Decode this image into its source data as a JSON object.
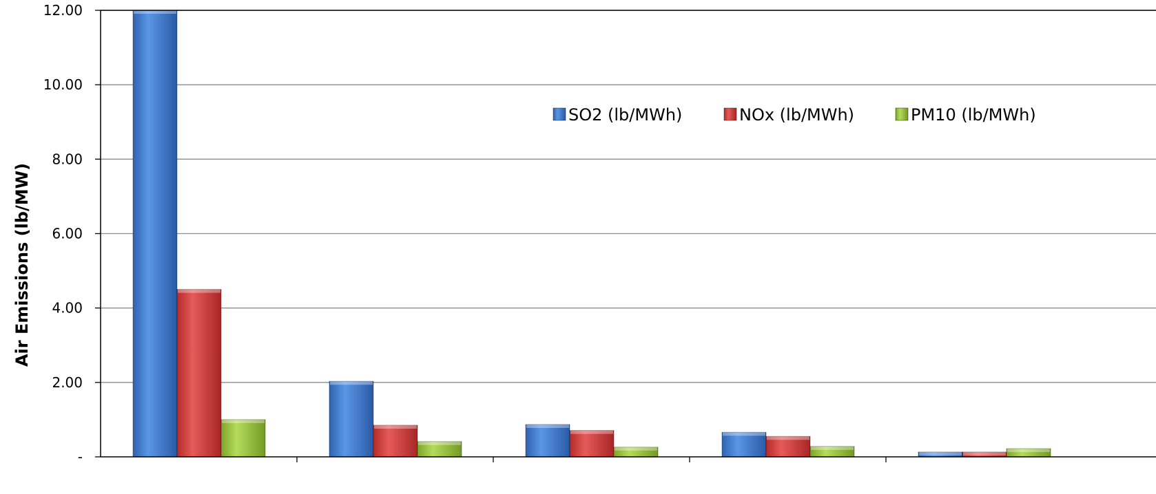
{
  "chart_data": {
    "type": "bar",
    "title": "",
    "xlabel": "",
    "ylabel": "Air Emissions (lb/MW)",
    "ylim": [
      0,
      12
    ],
    "yticks": [
      {
        "value": 0,
        "label": "-"
      },
      {
        "value": 2,
        "label": "2.00"
      },
      {
        "value": 4,
        "label": "4.00"
      },
      {
        "value": 6,
        "label": "6.00"
      },
      {
        "value": 8,
        "label": "8.00"
      },
      {
        "value": 10,
        "label": "10.00"
      },
      {
        "value": 12,
        "label": "12.00"
      }
    ],
    "grid": true,
    "legend_position": "top-right",
    "categories": [
      "",
      "",
      "",
      "",
      ""
    ],
    "series": [
      {
        "name": "SO2 (lb/MWh)",
        "color": "#3f7fd6",
        "values": [
          12.0,
          2.03,
          0.87,
          0.66,
          0.13
        ]
      },
      {
        "name": "NOx (lb/MWh)",
        "color": "#d63c3c",
        "values": [
          4.5,
          0.85,
          0.71,
          0.55,
          0.13
        ]
      },
      {
        "name": "PM10 (lb/MWh)",
        "color": "#9cc63c",
        "values": [
          1.0,
          0.41,
          0.26,
          0.28,
          0.22
        ]
      }
    ]
  }
}
